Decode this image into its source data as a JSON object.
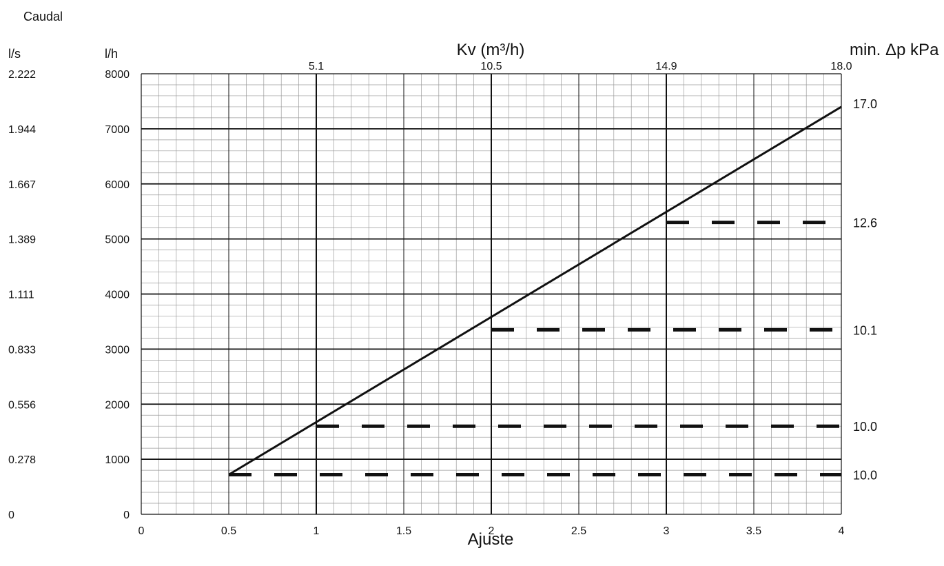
{
  "chart_data": {
    "type": "line",
    "title": "",
    "flow_label": "Caudal",
    "left_unit_ls": "l/s",
    "left_unit_lh": "l/h",
    "top_label": "Kv (m³/h)",
    "right_label": "min. Δp kPa",
    "xlabel": "Ajuste",
    "xlim": [
      0,
      4
    ],
    "ylim": [
      0,
      8000
    ],
    "x_ticks": [
      "0",
      "0.5",
      "1",
      "1.5",
      "2",
      "2.5",
      "3",
      "3.5",
      "4"
    ],
    "y_ticks_lh": [
      "0",
      "1000",
      "2000",
      "3000",
      "4000",
      "5000",
      "6000",
      "7000",
      "8000"
    ],
    "y_ticks_ls": [
      "0",
      "0.278",
      "0.556",
      "0.833",
      "1.111",
      "1.389",
      "1.667",
      "1.944",
      "2.222"
    ],
    "kv_ticks": [
      {
        "x": 1,
        "label": "5.1"
      },
      {
        "x": 2,
        "label": "10.5"
      },
      {
        "x": 3,
        "label": "14.9"
      },
      {
        "x": 4,
        "label": "18.0"
      }
    ],
    "grid": true,
    "series": [
      {
        "style": "solid",
        "x": [
          0.5,
          4
        ],
        "y": [
          720,
          7400
        ]
      }
    ],
    "min_dp_lines": [
      {
        "x_start": 0.5,
        "y": 720,
        "label": "10.0"
      },
      {
        "x_start": 1,
        "y": 1600,
        "label": "10.0"
      },
      {
        "x_start": 2,
        "y": 3350,
        "label": "10.1"
      },
      {
        "x_start": 3,
        "y": 5300,
        "label": "12.6"
      }
    ],
    "right_value_at_top_line": {
      "y": 7400,
      "label": "17.0"
    },
    "colors": {
      "line": "#111111",
      "grid_major": "#111111",
      "grid_minor": "#9a9a9a"
    }
  }
}
